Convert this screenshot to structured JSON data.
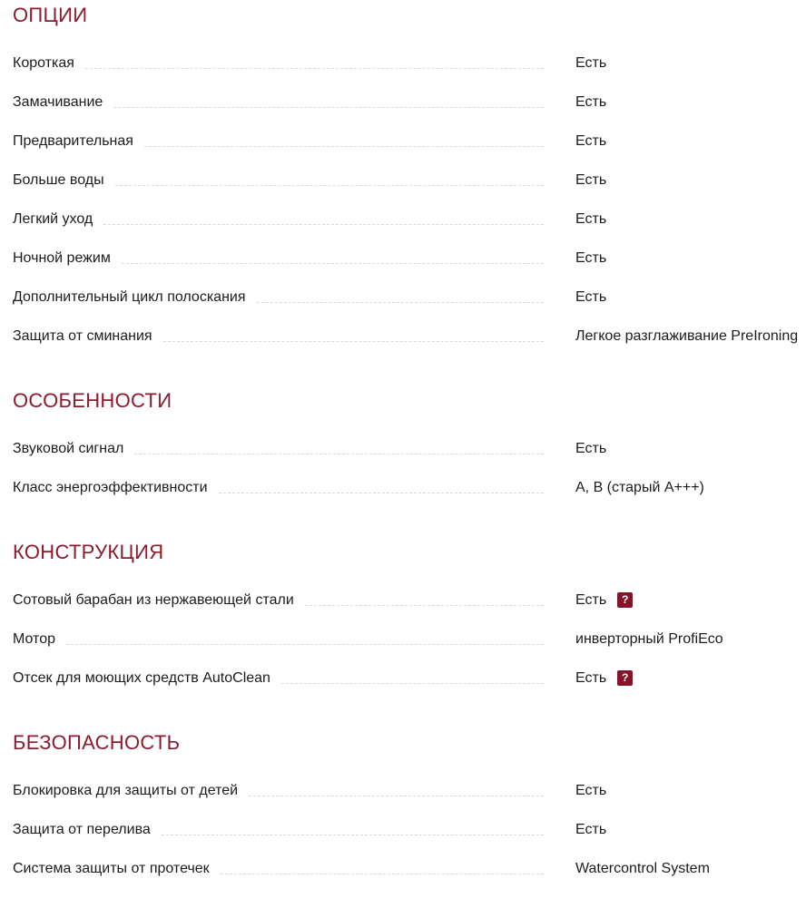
{
  "theme": {
    "header_color": "#8c1b2e",
    "text_color": "#1c1c1c",
    "leader_color": "#d9d9d9",
    "help_badge_bg": "#8a1228",
    "help_badge_fg": "#ffffff"
  },
  "help_icon": "?",
  "sections": [
    {
      "title": "ОПЦИИ",
      "rows": [
        {
          "label": "Короткая",
          "value": "Есть"
        },
        {
          "label": "Замачивание",
          "value": "Есть"
        },
        {
          "label": "Предварительная",
          "value": "Есть"
        },
        {
          "label": "Больше воды",
          "value": "Есть"
        },
        {
          "label": "Легкий уход",
          "value": "Есть"
        },
        {
          "label": "Ночной режим",
          "value": "Есть"
        },
        {
          "label": "Дополнительный цикл полоскания",
          "value": "Есть"
        },
        {
          "label": "Защита от сминания",
          "value": "Легкое разглаживание PreIroning"
        }
      ]
    },
    {
      "title": "ОСОБЕННОСТИ",
      "rows": [
        {
          "label": "Звуковой сигнал",
          "value": "Есть"
        },
        {
          "label": "Класс энергоэффективности",
          "value": "А, В (старый А+++)"
        }
      ]
    },
    {
      "title": "КОНСТРУКЦИЯ",
      "rows": [
        {
          "label": "Сотовый барабан из нержавеющей стали",
          "value": "Есть",
          "help": true
        },
        {
          "label": "Мотор",
          "value": "инверторный ProfiEco"
        },
        {
          "label": "Отсек для моющих средств AutoClean",
          "value": "Есть",
          "help": true
        }
      ]
    },
    {
      "title": "БЕЗОПАСНОСТЬ",
      "rows": [
        {
          "label": "Блокировка для защиты от детей",
          "value": "Есть"
        },
        {
          "label": "Защита от перелива",
          "value": "Есть"
        },
        {
          "label": "Система защиты от протечек",
          "value": "Watercontrol System"
        }
      ]
    }
  ]
}
